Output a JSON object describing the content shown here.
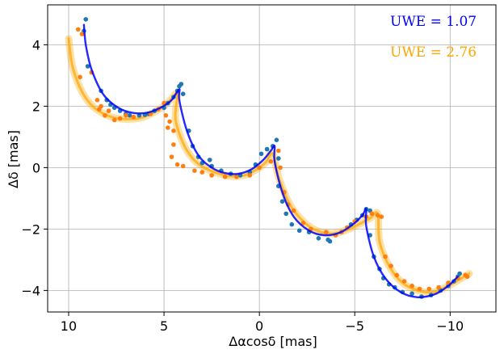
{
  "chart_data": {
    "type": "scatter",
    "xlabel": "Δαcosδ [mas]",
    "ylabel": "Δδ [mas]",
    "xlim": [
      11.1,
      -12.4
    ],
    "ylim": [
      -4.7,
      5.3
    ],
    "x_ticks": [
      10,
      5,
      0,
      -5,
      -10
    ],
    "x_tick_labels": [
      "10",
      "5",
      "0",
      "−5",
      "−10"
    ],
    "y_ticks": [
      4,
      2,
      0,
      -2,
      -4
    ],
    "y_tick_labels": [
      "4",
      "2",
      "0",
      "−2",
      "−4"
    ],
    "grid": true,
    "annotations": [
      {
        "text": "UWE = 1.07",
        "color": "#0000ff"
      },
      {
        "text": "UWE = 2.76",
        "color": "#ffa500"
      }
    ],
    "series": [
      {
        "color": "#1f77b4",
        "kind": "points",
        "points": [
          [
            9.1,
            4.83
          ],
          [
            9.2,
            4.45
          ],
          [
            9.0,
            3.3
          ],
          [
            8.3,
            2.5
          ],
          [
            8.0,
            2.2
          ],
          [
            7.8,
            2.05
          ],
          [
            7.6,
            1.95
          ],
          [
            7.3,
            1.85
          ],
          [
            7.0,
            1.75
          ],
          [
            6.8,
            1.7
          ],
          [
            6.3,
            1.7
          ],
          [
            6.0,
            1.72
          ],
          [
            5.8,
            1.75
          ],
          [
            5.5,
            1.85
          ],
          [
            5.0,
            1.95
          ],
          [
            4.8,
            2.1
          ],
          [
            4.5,
            2.3
          ],
          [
            4.3,
            2.5
          ],
          [
            4.2,
            2.65
          ],
          [
            4.1,
            2.72
          ],
          [
            4.0,
            2.4
          ],
          [
            3.7,
            1.2
          ],
          [
            3.5,
            0.7
          ],
          [
            3.2,
            0.35
          ],
          [
            3.0,
            0.15
          ],
          [
            2.6,
            0.25
          ],
          [
            2.5,
            0.05
          ],
          [
            2.0,
            -0.1
          ],
          [
            1.5,
            -0.2
          ],
          [
            1.0,
            -0.25
          ],
          [
            0.5,
            -0.15
          ],
          [
            0.2,
            0.1
          ],
          [
            -0.1,
            0.45
          ],
          [
            -0.4,
            0.6
          ],
          [
            -0.7,
            0.7
          ],
          [
            -0.9,
            0.9
          ],
          [
            -1.0,
            0.3
          ],
          [
            -1.0,
            -0.6
          ],
          [
            -1.2,
            -1.1
          ],
          [
            -1.4,
            -1.5
          ],
          [
            -1.7,
            -1.85
          ],
          [
            -2.1,
            -2.05
          ],
          [
            -2.6,
            -2.1
          ],
          [
            -3.1,
            -2.3
          ],
          [
            -3.6,
            -2.35
          ],
          [
            -3.7,
            -2.4
          ],
          [
            -4.3,
            -2.1
          ],
          [
            -4.8,
            -1.85
          ],
          [
            -5.1,
            -1.7
          ],
          [
            -5.4,
            -1.55
          ],
          [
            -5.6,
            -1.35
          ],
          [
            -5.8,
            -1.4
          ],
          [
            -5.8,
            -2.2
          ],
          [
            -6.0,
            -2.9
          ],
          [
            -6.3,
            -3.3
          ],
          [
            -6.5,
            -3.6
          ],
          [
            -6.8,
            -3.8
          ],
          [
            -7.1,
            -3.9
          ],
          [
            -7.5,
            -4.05
          ],
          [
            -8.0,
            -4.1
          ],
          [
            -8.5,
            -4.2
          ],
          [
            -9.0,
            -4.15
          ],
          [
            -9.5,
            -4.0
          ],
          [
            -9.9,
            -3.85
          ],
          [
            -10.2,
            -3.7
          ],
          [
            -10.4,
            -3.55
          ],
          [
            -10.5,
            -3.45
          ]
        ]
      },
      {
        "color": "#ff7f0e",
        "kind": "points",
        "points": [
          [
            9.5,
            4.5
          ],
          [
            9.3,
            4.35
          ],
          [
            8.8,
            3.1
          ],
          [
            9.4,
            2.95
          ],
          [
            8.5,
            2.2
          ],
          [
            8.3,
            2.0
          ],
          [
            8.4,
            1.9
          ],
          [
            7.9,
            1.85
          ],
          [
            8.1,
            1.7
          ],
          [
            7.6,
            1.55
          ],
          [
            7.3,
            1.6
          ],
          [
            7.0,
            1.7
          ],
          [
            6.6,
            1.65
          ],
          [
            5.7,
            1.75
          ],
          [
            5.3,
            1.9
          ],
          [
            5.0,
            2.1
          ],
          [
            4.9,
            1.7
          ],
          [
            4.7,
            1.5
          ],
          [
            4.8,
            1.3
          ],
          [
            4.5,
            1.2
          ],
          [
            4.5,
            0.75
          ],
          [
            4.6,
            0.35
          ],
          [
            4.3,
            0.1
          ],
          [
            4.0,
            0.05
          ],
          [
            3.4,
            -0.1
          ],
          [
            3.0,
            -0.15
          ],
          [
            2.5,
            -0.25
          ],
          [
            1.8,
            -0.3
          ],
          [
            1.2,
            -0.3
          ],
          [
            0.5,
            -0.25
          ],
          [
            0.0,
            0.0
          ],
          [
            -0.6,
            0.2
          ],
          [
            -1.0,
            0.55
          ],
          [
            -1.1,
            0.0
          ],
          [
            -1.3,
            -0.8
          ],
          [
            -1.5,
            -1.2
          ],
          [
            -1.8,
            -1.4
          ],
          [
            -2.3,
            -1.8
          ],
          [
            -2.7,
            -2.0
          ],
          [
            -3.5,
            -2.1
          ],
          [
            -4.0,
            -2.2
          ],
          [
            -4.3,
            -2.1
          ],
          [
            -4.6,
            -1.95
          ],
          [
            -5.0,
            -1.75
          ],
          [
            -5.6,
            -1.6
          ],
          [
            -5.9,
            -1.5
          ],
          [
            -6.2,
            -1.55
          ],
          [
            -6.4,
            -1.6
          ],
          [
            -6.6,
            -2.9
          ],
          [
            -6.9,
            -3.2
          ],
          [
            -7.2,
            -3.5
          ],
          [
            -7.6,
            -3.7
          ],
          [
            -8.0,
            -3.85
          ],
          [
            -8.4,
            -3.95
          ],
          [
            -8.9,
            -3.95
          ],
          [
            -9.4,
            -3.9
          ],
          [
            -9.9,
            -3.75
          ],
          [
            -10.4,
            -3.6
          ],
          [
            -10.8,
            -3.5
          ],
          [
            -10.9,
            -3.55
          ]
        ]
      },
      {
        "color": "#ffa500",
        "kind": "band",
        "points": [
          [
            10.0,
            4.2
          ],
          [
            9.8,
            3.3
          ],
          [
            9.4,
            2.6
          ],
          [
            8.9,
            2.1
          ],
          [
            8.3,
            1.8
          ],
          [
            7.6,
            1.62
          ],
          [
            6.9,
            1.58
          ],
          [
            6.2,
            1.62
          ],
          [
            5.6,
            1.78
          ],
          [
            5.0,
            2.0
          ],
          [
            4.6,
            2.25
          ],
          [
            4.3,
            2.4
          ],
          [
            4.4,
            1.6
          ],
          [
            4.0,
            0.8
          ],
          [
            3.5,
            0.3
          ],
          [
            2.9,
            0.0
          ],
          [
            2.2,
            -0.18
          ],
          [
            1.5,
            -0.28
          ],
          [
            0.8,
            -0.25
          ],
          [
            0.2,
            -0.08
          ],
          [
            -0.3,
            0.15
          ],
          [
            -0.7,
            0.45
          ],
          [
            -1.0,
            -0.3
          ],
          [
            -1.6,
            -1.2
          ],
          [
            -2.3,
            -1.75
          ],
          [
            -3.0,
            -2.05
          ],
          [
            -3.8,
            -2.15
          ],
          [
            -4.5,
            -2.05
          ],
          [
            -5.2,
            -1.85
          ],
          [
            -5.8,
            -1.65
          ],
          [
            -6.2,
            -1.5
          ],
          [
            -6.3,
            -2.4
          ],
          [
            -6.8,
            -3.2
          ],
          [
            -7.5,
            -3.75
          ],
          [
            -8.3,
            -4.0
          ],
          [
            -9.1,
            -4.05
          ],
          [
            -9.9,
            -3.85
          ],
          [
            -10.6,
            -3.6
          ],
          [
            -11.0,
            -3.45
          ]
        ]
      },
      {
        "color": "#0000ff",
        "kind": "curve",
        "points": [
          [
            9.2,
            4.65
          ],
          [
            9.1,
            4.0
          ],
          [
            8.8,
            3.2
          ],
          [
            8.2,
            2.4
          ],
          [
            7.4,
            1.95
          ],
          [
            6.6,
            1.78
          ],
          [
            5.8,
            1.8
          ],
          [
            5.1,
            1.98
          ],
          [
            4.6,
            2.2
          ],
          [
            4.2,
            2.55
          ],
          [
            4.2,
            2.2
          ],
          [
            3.8,
            1.2
          ],
          [
            3.2,
            0.4
          ],
          [
            2.5,
            0.0
          ],
          [
            1.8,
            -0.18
          ],
          [
            1.1,
            -0.2
          ],
          [
            0.4,
            -0.05
          ],
          [
            -0.2,
            0.25
          ],
          [
            -0.6,
            0.55
          ],
          [
            -0.8,
            0.7
          ],
          [
            -0.8,
            0.2
          ],
          [
            -1.2,
            -0.8
          ],
          [
            -1.8,
            -1.6
          ],
          [
            -2.6,
            -2.05
          ],
          [
            -3.4,
            -2.2
          ],
          [
            -4.2,
            -2.12
          ],
          [
            -4.9,
            -1.85
          ],
          [
            -5.4,
            -1.55
          ],
          [
            -5.6,
            -1.35
          ],
          [
            -5.6,
            -1.9
          ],
          [
            -6.0,
            -2.9
          ],
          [
            -6.6,
            -3.6
          ],
          [
            -7.4,
            -4.05
          ],
          [
            -8.3,
            -4.22
          ],
          [
            -9.2,
            -4.12
          ],
          [
            -9.9,
            -3.85
          ],
          [
            -10.4,
            -3.55
          ]
        ]
      }
    ]
  }
}
